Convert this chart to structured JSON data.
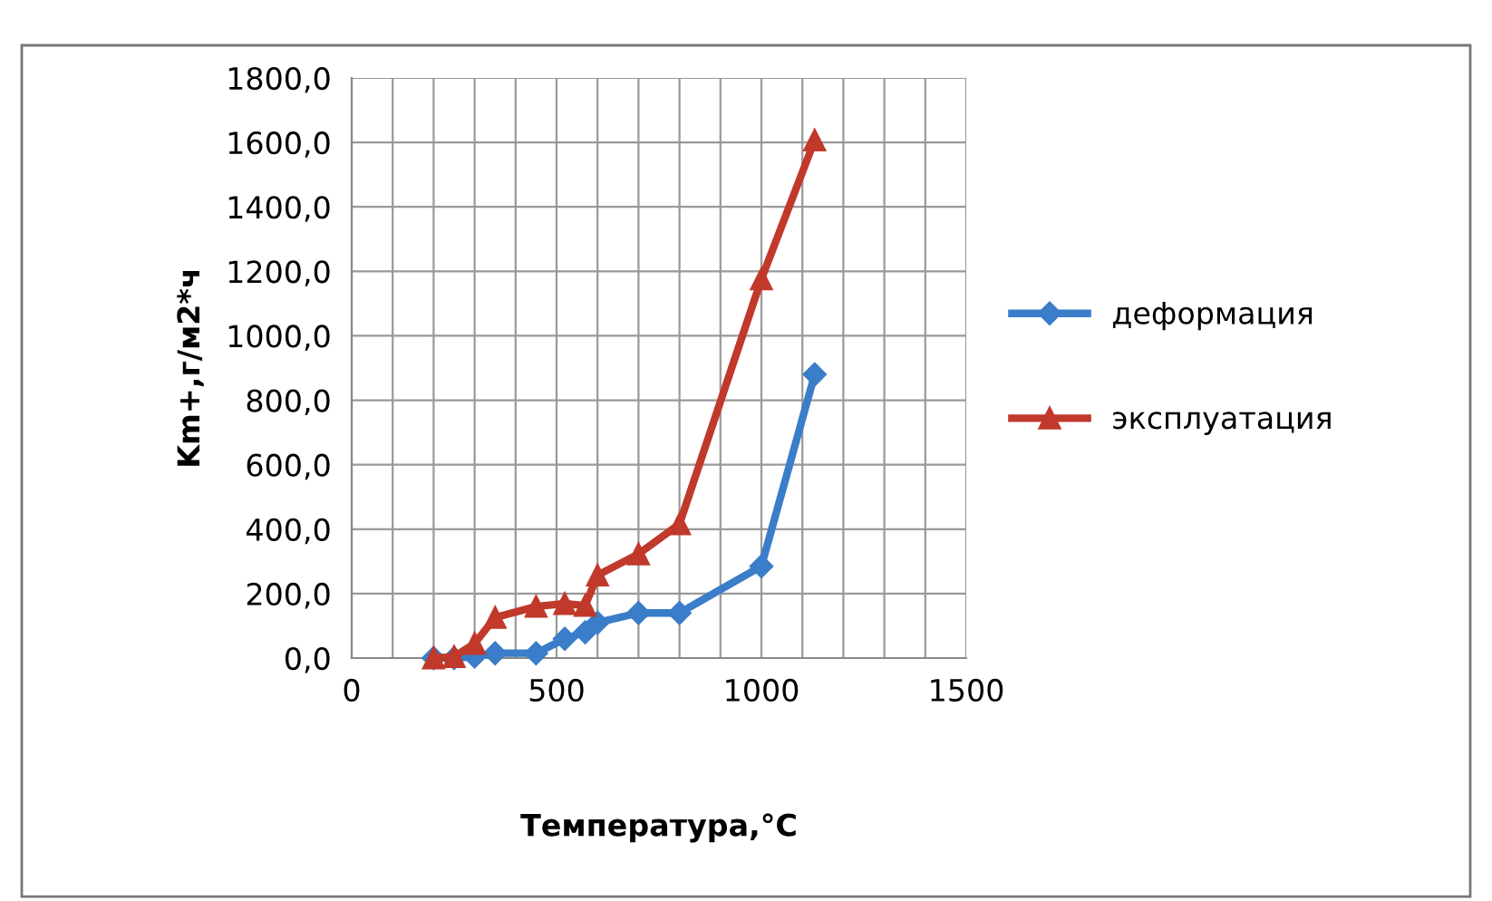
{
  "chart_data": {
    "type": "line",
    "xlabel": "Температура,°С",
    "ylabel": "Km+,г/м2*ч",
    "xlim": [
      0,
      1500
    ],
    "ylim": [
      0,
      1800
    ],
    "xticks": [
      0,
      {
        "value": 100,
        "label": null
      },
      {
        "value": 200,
        "label": null
      },
      {
        "value": 300,
        "label": null
      },
      {
        "value": 400,
        "label": null
      },
      500,
      {
        "value": 600,
        "label": null
      },
      {
        "value": 700,
        "label": null
      },
      {
        "value": 800,
        "label": null
      },
      {
        "value": 900,
        "label": null
      },
      1000,
      {
        "value": 1100,
        "label": null
      },
      {
        "value": 1200,
        "label": null
      },
      {
        "value": 1300,
        "label": null
      },
      {
        "value": 1400,
        "label": null
      },
      1500
    ],
    "yticks": [
      {
        "value": 0,
        "label": "0,0"
      },
      {
        "value": 200,
        "label": "200,0"
      },
      {
        "value": 400,
        "label": "400,0"
      },
      {
        "value": 600,
        "label": "600,0"
      },
      {
        "value": 800,
        "label": "800,0"
      },
      {
        "value": 1000,
        "label": "1000,0"
      },
      {
        "value": 1200,
        "label": "1200,0"
      },
      {
        "value": 1400,
        "label": "1400,0"
      },
      {
        "value": 1600,
        "label": "1600,0"
      },
      {
        "value": 1800,
        "label": "1800,0"
      }
    ],
    "grid": true,
    "legend": "right",
    "series": [
      {
        "name": "деформация",
        "color": "#3a7dc9",
        "marker": "diamond",
        "x": [
          200,
          250,
          300,
          350,
          450,
          520,
          570,
          600,
          700,
          800,
          1000,
          1130
        ],
        "values": [
          0,
          0,
          5,
          15,
          15,
          60,
          80,
          110,
          140,
          140,
          285,
          880
        ]
      },
      {
        "name": "эксплуатация",
        "color": "#c0392b",
        "marker": "triangle",
        "x": [
          200,
          250,
          300,
          350,
          450,
          520,
          570,
          600,
          700,
          800,
          1000,
          1130
        ],
        "values": [
          0,
          4,
          45,
          126,
          160,
          169,
          163,
          257,
          323,
          416,
          1176,
          1607
        ]
      }
    ]
  }
}
